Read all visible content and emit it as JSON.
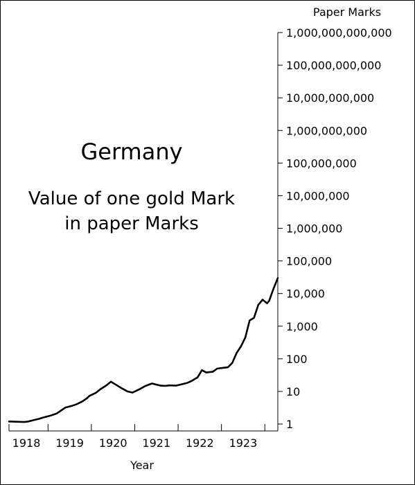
{
  "chart_data": {
    "type": "line",
    "title": "Germany",
    "subtitle_lines": [
      "Value of one gold Mark",
      "in paper Marks"
    ],
    "xlabel": "Year",
    "ylabel": "Paper Marks",
    "y_scale": "log10",
    "ylim": [
      1,
      1000000000000
    ],
    "xlim": [
      1917.6,
      1923.8
    ],
    "y_ticks": [
      {
        "value": 1,
        "label": "1"
      },
      {
        "value": 10,
        "label": "10"
      },
      {
        "value": 100,
        "label": "100"
      },
      {
        "value": 1000,
        "label": "1,000"
      },
      {
        "value": 10000,
        "label": "10,000"
      },
      {
        "value": 100000,
        "label": "100,000"
      },
      {
        "value": 1000000,
        "label": "1,000,000"
      },
      {
        "value": 10000000,
        "label": "10,000,000"
      },
      {
        "value": 100000000,
        "label": "100,000,000"
      },
      {
        "value": 1000000000,
        "label": "1,000,000,000"
      },
      {
        "value": 10000000000,
        "label": "10,000,000,000"
      },
      {
        "value": 100000000000,
        "label": "100,000,000,000"
      },
      {
        "value": 1000000000000,
        "label": "1,000,000,000,000"
      }
    ],
    "x_ticks": [
      {
        "value": 1918,
        "label": "1918"
      },
      {
        "value": 1919,
        "label": "1919"
      },
      {
        "value": 1920,
        "label": "1920"
      },
      {
        "value": 1921,
        "label": "1921"
      },
      {
        "value": 1922,
        "label": "1922"
      },
      {
        "value": 1923,
        "label": "1923"
      }
    ],
    "x_minor_ticks": [
      1917.6,
      1918.5,
      1919.5,
      1920.5,
      1921.5,
      1922.5,
      1923.5,
      1923.8
    ],
    "grid": false,
    "series": [
      {
        "color": "#000000",
        "points": [
          [
            1917.6,
            1.2
          ],
          [
            1917.95,
            1.15
          ],
          [
            1918.05,
            1.2
          ],
          [
            1918.15,
            1.3
          ],
          [
            1918.3,
            1.45
          ],
          [
            1918.4,
            1.6
          ],
          [
            1918.55,
            1.8
          ],
          [
            1918.7,
            2.1
          ],
          [
            1918.8,
            2.6
          ],
          [
            1918.9,
            3.2
          ],
          [
            1919.05,
            3.6
          ],
          [
            1919.15,
            4.0
          ],
          [
            1919.3,
            5.0
          ],
          [
            1919.4,
            6.2
          ],
          [
            1919.45,
            7.2
          ],
          [
            1919.6,
            9.0
          ],
          [
            1919.7,
            11.5
          ],
          [
            1919.85,
            15.5
          ],
          [
            1919.95,
            19.8
          ],
          [
            1920.05,
            16.5
          ],
          [
            1920.2,
            12.5
          ],
          [
            1920.33,
            10.0
          ],
          [
            1920.45,
            9.2
          ],
          [
            1920.6,
            11.5
          ],
          [
            1920.75,
            14.8
          ],
          [
            1920.9,
            17.5
          ],
          [
            1921.0,
            16.2
          ],
          [
            1921.1,
            15.0
          ],
          [
            1921.2,
            14.8
          ],
          [
            1921.3,
            15.3
          ],
          [
            1921.45,
            15.0
          ],
          [
            1921.55,
            16.2
          ],
          [
            1921.7,
            18.0
          ],
          [
            1921.8,
            20.5
          ],
          [
            1921.95,
            27.0
          ],
          [
            1922.05,
            45.0
          ],
          [
            1922.15,
            38.0
          ],
          [
            1922.3,
            40.0
          ],
          [
            1922.4,
            50.0
          ],
          [
            1922.5,
            52.0
          ],
          [
            1922.65,
            55.0
          ],
          [
            1922.75,
            75.0
          ],
          [
            1922.85,
            150.0
          ],
          [
            1922.95,
            240.0
          ],
          [
            1923.05,
            450.0
          ],
          [
            1923.15,
            1500.0
          ],
          [
            1923.25,
            1800.0
          ],
          [
            1923.35,
            4500.0
          ],
          [
            1923.45,
            6500.0
          ],
          [
            1923.55,
            5000.0
          ],
          [
            1923.6,
            6000.0
          ],
          [
            1923.7,
            14000.0
          ],
          [
            1923.8,
            30000.0
          ]
        ]
      }
    ]
  }
}
